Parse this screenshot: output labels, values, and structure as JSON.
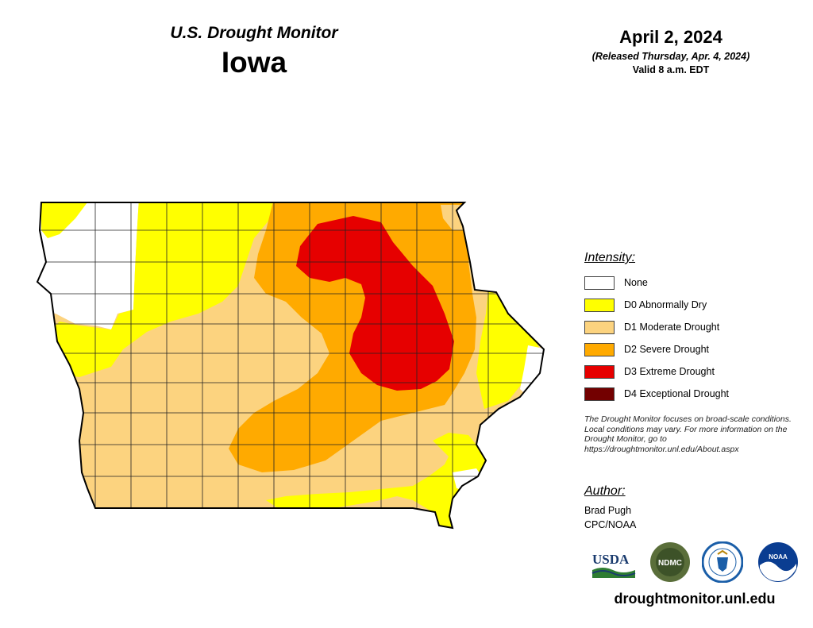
{
  "header": {
    "supertitle": "U.S. Drought Monitor",
    "state": "Iowa",
    "date": "April 2, 2024",
    "released": "(Released Thursday, Apr. 4, 2024)",
    "valid": "Valid 8 a.m. EDT"
  },
  "legend": {
    "title": "Intensity:",
    "items": [
      {
        "label": "None",
        "color": "#ffffff"
      },
      {
        "label": "D0 Abnormally Dry",
        "color": "#ffff00"
      },
      {
        "label": "D1 Moderate Drought",
        "color": "#fcd37f"
      },
      {
        "label": "D2 Severe Drought",
        "color": "#ffaa00"
      },
      {
        "label": "D3 Extreme Drought",
        "color": "#e60000"
      },
      {
        "label": "D4 Exceptional Drought",
        "color": "#730000"
      }
    ]
  },
  "note": "The Drought Monitor focuses on broad-scale conditions. Local conditions may vary. For more information on the Drought Monitor, go to https://droughtmonitor.unl.edu/About.aspx",
  "author": {
    "title": "Author:",
    "name": "Brad Pugh",
    "org": "CPC/NOAA"
  },
  "logos": {
    "usda": "USDA",
    "ndmc": "NDMC",
    "noaa": "NOAA"
  },
  "website": "droughtmonitor.unl.edu"
}
